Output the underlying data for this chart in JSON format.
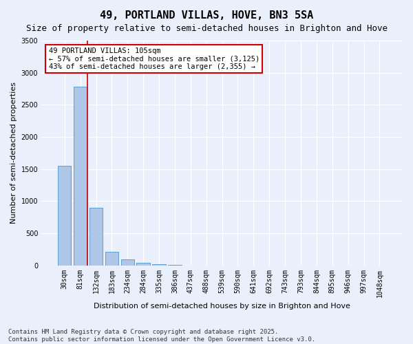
{
  "title": "49, PORTLAND VILLAS, HOVE, BN3 5SA",
  "subtitle": "Size of property relative to semi-detached houses in Brighton and Hove",
  "xlabel": "Distribution of semi-detached houses by size in Brighton and Hove",
  "ylabel": "Number of semi-detached properties",
  "bin_labels": [
    "30sqm",
    "81sqm",
    "132sqm",
    "183sqm",
    "234sqm",
    "284sqm",
    "335sqm",
    "386sqm",
    "437sqm",
    "488sqm",
    "539sqm",
    "590sqm",
    "641sqm",
    "692sqm",
    "743sqm",
    "793sqm",
    "844sqm",
    "895sqm",
    "946sqm",
    "997sqm",
    "1048sqm"
  ],
  "bar_values": [
    1550,
    2780,
    900,
    210,
    90,
    40,
    15,
    3,
    0,
    0,
    0,
    0,
    0,
    0,
    0,
    0,
    0,
    0,
    0,
    0,
    0
  ],
  "bar_color": "#aec6e8",
  "bar_edge_color": "#5a9fd4",
  "property_line_bin": 1.47,
  "annotation_title": "49 PORTLAND VILLAS: 105sqm",
  "annotation_line1": "← 57% of semi-detached houses are smaller (3,125)",
  "annotation_line2": "43% of semi-detached houses are larger (2,355) →",
  "annotation_box_color": "#ffffff",
  "annotation_box_edge": "#cc0000",
  "vline_color": "#cc0000",
  "ylim": [
    0,
    3500
  ],
  "yticks": [
    0,
    500,
    1000,
    1500,
    2000,
    2500,
    3000,
    3500
  ],
  "footer_line1": "Contains HM Land Registry data © Crown copyright and database right 2025.",
  "footer_line2": "Contains public sector information licensed under the Open Government Licence v3.0.",
  "bg_color": "#eaf0fb",
  "plot_bg_color": "#eaf0fb",
  "grid_color": "#ffffff",
  "title_fontsize": 11,
  "subtitle_fontsize": 9,
  "axis_label_fontsize": 8,
  "tick_fontsize": 7,
  "annotation_fontsize": 7.5,
  "footer_fontsize": 6.5
}
